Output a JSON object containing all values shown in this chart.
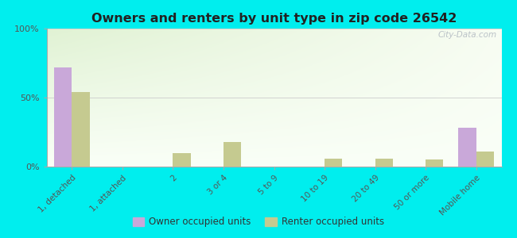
{
  "title": "Owners and renters by unit type in zip code 26542",
  "categories": [
    "1, detached",
    "1, attached",
    "2",
    "3 or 4",
    "5 to 9",
    "10 to 19",
    "20 to 49",
    "50 or more",
    "Mobile home"
  ],
  "owner_values": [
    72,
    0,
    0,
    0,
    0,
    0,
    0,
    0,
    28
  ],
  "renter_values": [
    54,
    0,
    10,
    18,
    0,
    6,
    6,
    5,
    11
  ],
  "owner_color": "#c9a8d9",
  "renter_color": "#c5ca90",
  "background_color": "#00eeee",
  "ylim": [
    0,
    100
  ],
  "yticks": [
    0,
    50,
    100
  ],
  "ytick_labels": [
    "0%",
    "50%",
    "100%"
  ],
  "watermark": "City-Data.com",
  "legend_owner": "Owner occupied units",
  "legend_renter": "Renter occupied units",
  "bar_width": 0.35
}
